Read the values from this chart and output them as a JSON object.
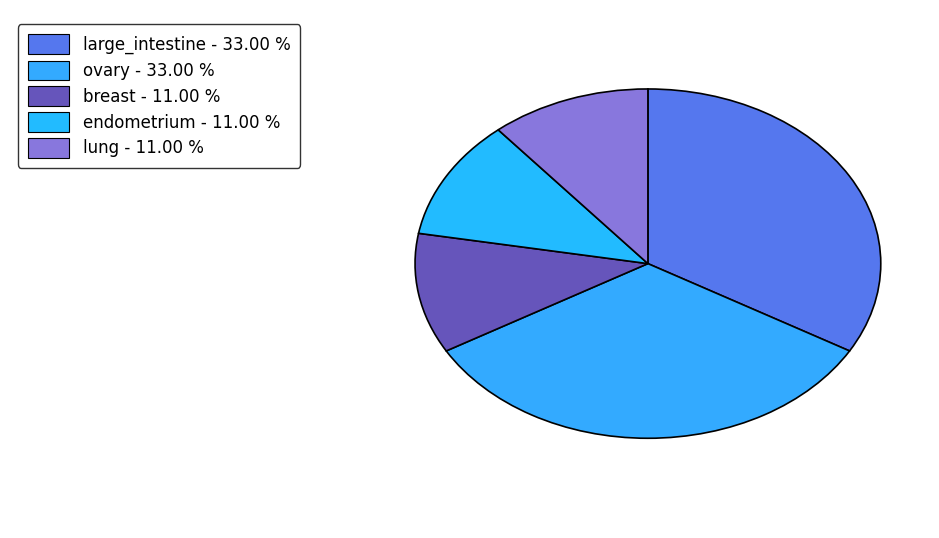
{
  "labels": [
    "large_intestine",
    "ovary",
    "breast",
    "endometrium",
    "lung"
  ],
  "values": [
    33.0,
    33.0,
    11.0,
    11.0,
    11.0
  ],
  "colors": [
    "#5577ee",
    "#33aaff",
    "#6655bb",
    "#22bbff",
    "#8877dd"
  ],
  "legend_labels": [
    "large_intestine - 33.00 %",
    "ovary - 33.00 %",
    "breast - 11.00 %",
    "endometrium - 11.00 %",
    "lung - 11.00 %"
  ],
  "startangle": 90,
  "background_color": "#ffffff",
  "figsize": [
    9.39,
    5.38
  ],
  "dpi": 100
}
